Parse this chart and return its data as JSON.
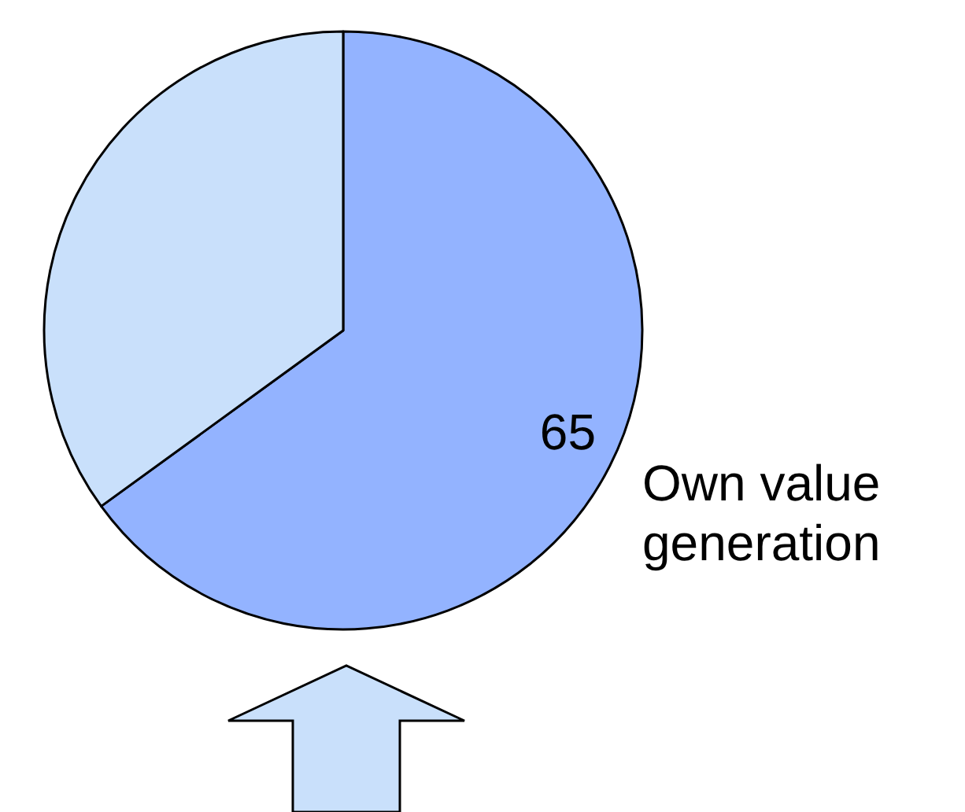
{
  "chart_data": {
    "type": "pie",
    "categories": [
      "Own value generation",
      null
    ],
    "values": [
      65,
      35
    ],
    "colors": [
      "#93b3ff",
      "#c9e0fb"
    ],
    "value_labels": [
      "65",
      null
    ],
    "legend": false
  }
}
